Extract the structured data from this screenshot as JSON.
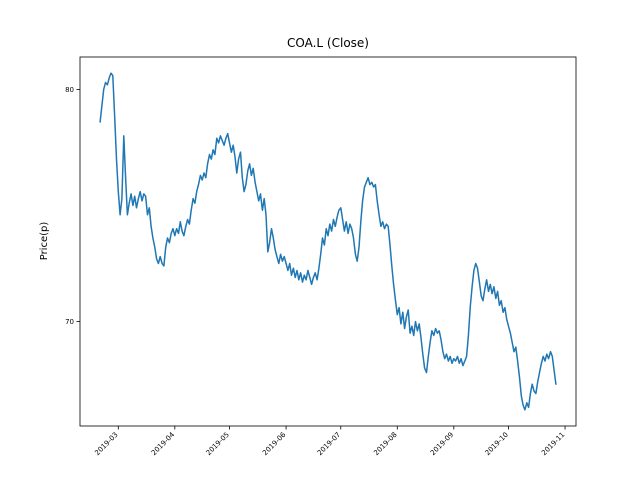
{
  "figure": {
    "background": "#ffffff"
  },
  "chart_data": {
    "type": "line",
    "title": "COA.L (Close)",
    "xlabel": "",
    "ylabel": "Price(p)",
    "legend": "none",
    "grid": false,
    "line_color": "#1f77b4",
    "xlim": [
      0,
      272
    ],
    "ylim": [
      65.5,
      81.4
    ],
    "x_ticks": [
      {
        "pos": 21,
        "label": "2019-03"
      },
      {
        "pos": 52,
        "label": "2019-04"
      },
      {
        "pos": 82,
        "label": "2019-05"
      },
      {
        "pos": 113,
        "label": "2019-06"
      },
      {
        "pos": 143,
        "label": "2019-07"
      },
      {
        "pos": 174,
        "label": "2019-08"
      },
      {
        "pos": 205,
        "label": "2019-09"
      },
      {
        "pos": 235,
        "label": "2019-10"
      },
      {
        "pos": 266,
        "label": "2019-11"
      }
    ],
    "y_ticks": [
      {
        "pos": 70,
        "label": "70"
      },
      {
        "pos": 80,
        "label": "80"
      }
    ],
    "series": [
      {
        "name": "Close",
        "x_start": 11,
        "x_step": 1,
        "values": [
          78.6,
          79.3,
          80.0,
          80.3,
          80.2,
          80.5,
          80.7,
          80.6,
          78.9,
          77.0,
          75.6,
          74.6,
          75.3,
          78.0,
          76.2,
          74.6,
          75.1,
          75.5,
          75.0,
          75.4,
          74.9,
          75.3,
          75.6,
          75.2,
          75.5,
          75.4,
          74.6,
          74.9,
          74.1,
          73.6,
          73.2,
          72.7,
          72.5,
          72.8,
          72.5,
          72.4,
          73.2,
          73.6,
          73.4,
          73.8,
          74.0,
          73.7,
          74.0,
          73.8,
          74.3,
          73.9,
          73.7,
          74.1,
          74.4,
          74.2,
          74.8,
          75.3,
          75.1,
          75.6,
          75.9,
          76.3,
          76.1,
          76.4,
          76.2,
          76.8,
          77.2,
          77.0,
          77.4,
          77.2,
          77.9,
          77.7,
          78.0,
          77.8,
          77.6,
          77.9,
          78.1,
          77.7,
          77.3,
          77.6,
          77.1,
          76.4,
          77.0,
          77.3,
          76.2,
          75.6,
          75.9,
          76.5,
          76.8,
          76.3,
          76.6,
          76.0,
          75.6,
          75.2,
          75.5,
          74.8,
          75.3,
          74.6,
          73.0,
          73.4,
          74.0,
          73.6,
          73.1,
          72.8,
          72.5,
          72.9,
          72.6,
          72.8,
          72.5,
          72.2,
          72.5,
          72.0,
          72.3,
          71.9,
          72.2,
          71.8,
          72.1,
          71.7,
          72.0,
          71.8,
          72.2,
          71.9,
          71.6,
          71.9,
          72.1,
          71.8,
          72.3,
          72.9,
          73.6,
          73.3,
          74.0,
          73.7,
          74.2,
          73.9,
          74.4,
          74.1,
          74.5,
          74.8,
          74.9,
          74.4,
          73.9,
          74.3,
          73.8,
          74.2,
          74.0,
          73.6,
          72.9,
          72.6,
          73.2,
          74.3,
          75.2,
          75.8,
          76.0,
          76.2,
          75.9,
          76.0,
          75.8,
          75.9,
          75.2,
          74.6,
          74.1,
          74.3,
          74.0,
          74.2,
          74.1,
          73.3,
          72.4,
          71.6,
          70.9,
          70.3,
          70.6,
          69.9,
          70.4,
          69.7,
          70.2,
          70.5,
          69.5,
          69.8,
          69.4,
          70.0,
          69.6,
          69.9,
          69.3,
          68.6,
          68.0,
          67.8,
          68.5,
          69.1,
          69.6,
          69.4,
          69.7,
          69.5,
          69.6,
          69.2,
          68.7,
          68.4,
          68.6,
          68.3,
          68.5,
          68.2,
          68.4,
          68.3,
          68.5,
          68.2,
          68.4,
          68.1,
          68.3,
          68.5,
          69.4,
          70.6,
          71.5,
          72.2,
          72.5,
          72.3,
          71.7,
          71.1,
          70.9,
          71.4,
          71.8,
          71.3,
          71.6,
          71.2,
          71.5,
          71.0,
          71.3,
          70.7,
          70.9,
          70.4,
          70.6,
          70.1,
          69.8,
          69.5,
          69.1,
          68.7,
          68.9,
          68.3,
          67.6,
          66.8,
          66.4,
          66.2,
          66.5,
          66.3,
          66.9,
          67.3,
          67.0,
          66.9,
          67.4,
          67.8,
          68.2,
          68.5,
          68.3,
          68.6,
          68.4,
          68.7,
          68.5,
          67.9,
          67.3
        ]
      }
    ]
  }
}
